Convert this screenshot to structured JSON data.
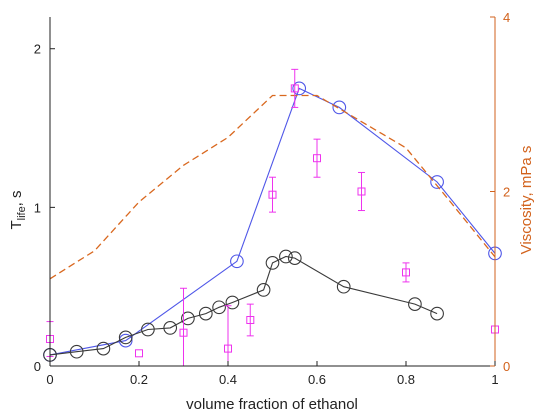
{
  "chart_data": {
    "type": "line",
    "xlabel": "volume fraction of ethanol",
    "ylabel_main": "T",
    "ylabel_sub": "life",
    "ylabel_tail": ", s",
    "ylabel_right": "Viscosity, mPa s",
    "xlim": [
      0,
      1
    ],
    "ylim_left": [
      0,
      2.2
    ],
    "ylim_right": [
      0,
      4
    ],
    "x_ticks": [
      0,
      0.2,
      0.4,
      0.6,
      0.8,
      1
    ],
    "x_tick_labels": [
      "0",
      "0.2",
      "0.4",
      "0.6",
      "0.8",
      "1"
    ],
    "y_ticks_left": [
      0,
      1,
      2
    ],
    "y_tick_labels_left": [
      "0",
      "1",
      "2"
    ],
    "y_ticks_right": [
      0,
      2,
      4
    ],
    "y_tick_labels_right": [
      "0",
      "2",
      "4"
    ],
    "grid": false,
    "colors": {
      "blue": "#4f57e8",
      "black": "#3a3a3a",
      "orange": "#d9681f",
      "magenta": "#ee33ee",
      "axis": "#222222",
      "right_axis": "#d2621c"
    },
    "series": [
      {
        "key": "blue",
        "axis": "left",
        "style": "line-circle",
        "points": [
          [
            0,
            0.07
          ],
          [
            0.17,
            0.16
          ],
          [
            0.42,
            0.66
          ],
          [
            0.56,
            1.75
          ],
          [
            0.65,
            1.63
          ],
          [
            0.87,
            1.16
          ],
          [
            1.0,
            0.71
          ]
        ]
      },
      {
        "key": "black",
        "axis": "left",
        "style": "line-circle",
        "points": [
          [
            0,
            0.07
          ],
          [
            0.06,
            0.09
          ],
          [
            0.12,
            0.11
          ],
          [
            0.17,
            0.18
          ],
          [
            0.22,
            0.23
          ],
          [
            0.27,
            0.24
          ],
          [
            0.31,
            0.3
          ],
          [
            0.35,
            0.33
          ],
          [
            0.38,
            0.37
          ],
          [
            0.41,
            0.4
          ],
          [
            0.48,
            0.48
          ],
          [
            0.5,
            0.65
          ],
          [
            0.53,
            0.69
          ],
          [
            0.55,
            0.68
          ],
          [
            0.66,
            0.5
          ],
          [
            0.82,
            0.39
          ],
          [
            0.87,
            0.33
          ]
        ]
      },
      {
        "key": "orange",
        "axis": "right",
        "style": "dashed",
        "points": [
          [
            0,
            1.0
          ],
          [
            0.1,
            1.32
          ],
          [
            0.2,
            1.88
          ],
          [
            0.3,
            2.3
          ],
          [
            0.4,
            2.62
          ],
          [
            0.5,
            3.1
          ],
          [
            0.6,
            3.1
          ],
          [
            0.7,
            2.8
          ],
          [
            0.8,
            2.5
          ],
          [
            0.9,
            1.88
          ],
          [
            1.0,
            1.25
          ]
        ]
      },
      {
        "key": "magenta",
        "axis": "left",
        "style": "square-errorbar",
        "points": [
          [
            0,
            0.17,
            0.11
          ],
          [
            0.2,
            0.08,
            0
          ],
          [
            0.3,
            0.21,
            0.28
          ],
          [
            0.4,
            0.11,
            0.27
          ],
          [
            0.45,
            0.29,
            0.1
          ],
          [
            0.5,
            1.08,
            0.11
          ],
          [
            0.55,
            1.75,
            0.12
          ],
          [
            0.6,
            1.31,
            0.12
          ],
          [
            0.7,
            1.1,
            0.12
          ],
          [
            0.8,
            0.59,
            0.06
          ],
          [
            1.0,
            0.23,
            0
          ]
        ]
      }
    ]
  }
}
